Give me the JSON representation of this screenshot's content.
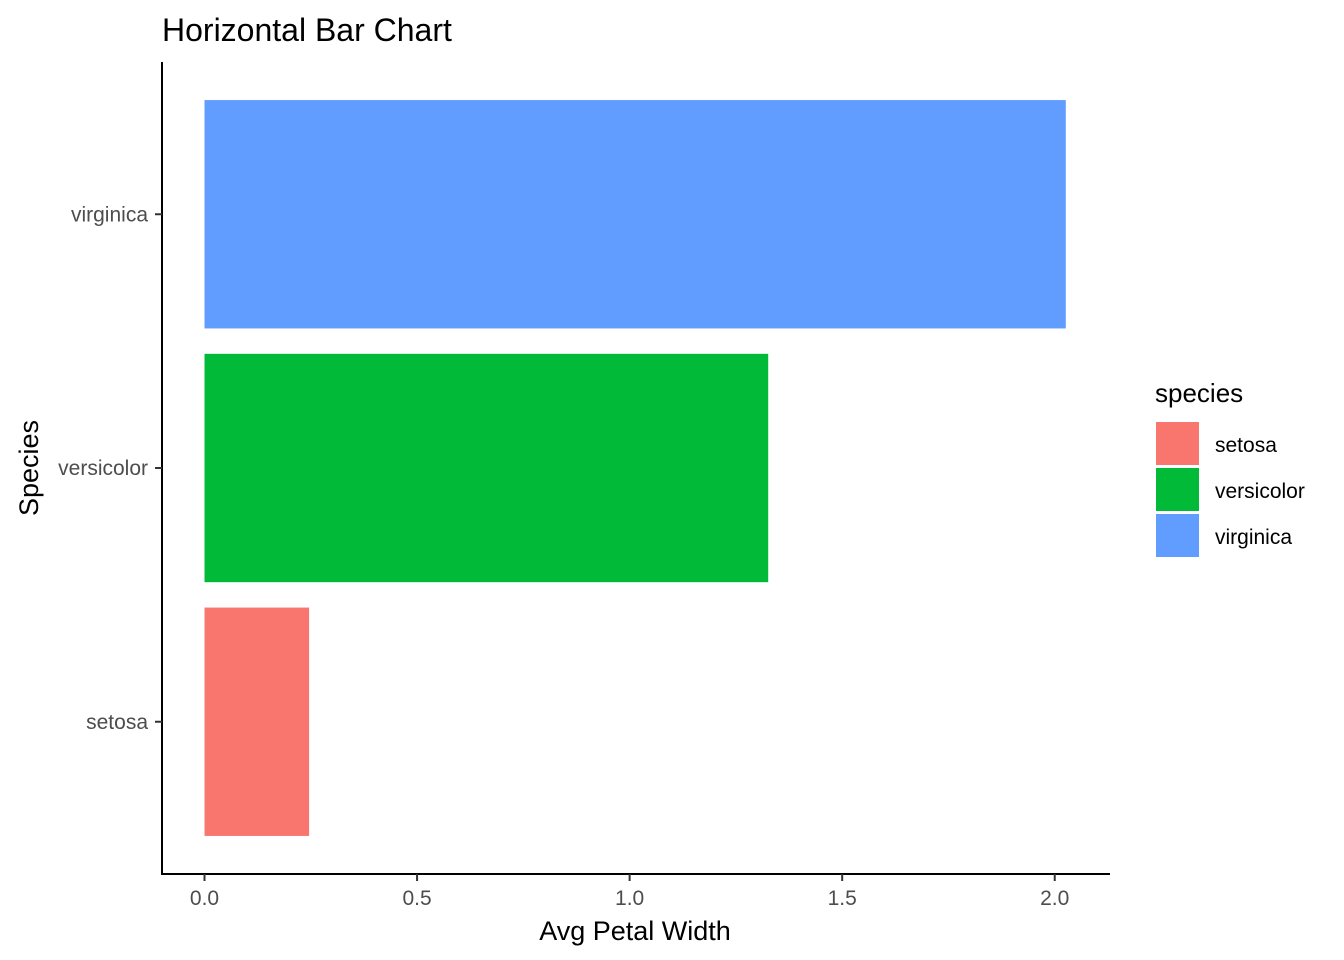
{
  "chart_data": {
    "type": "bar",
    "orientation": "horizontal",
    "title": "Horizontal Bar Chart",
    "xlabel": "Avg Petal Width",
    "ylabel": "Species",
    "categories": [
      "setosa",
      "versicolor",
      "virginica"
    ],
    "values": [
      0.246,
      1.326,
      2.026
    ],
    "colors": [
      "#F8766D",
      "#00BA38",
      "#619CFF"
    ],
    "xlim": [
      -0.1,
      2.13
    ],
    "x_ticks": [
      0.0,
      0.5,
      1.0,
      1.5,
      2.0
    ],
    "x_tick_labels": [
      "0.0",
      "0.5",
      "1.0",
      "1.5",
      "2.0"
    ],
    "grid": false,
    "legend": {
      "title": "species",
      "placement": "right",
      "entries": [
        {
          "label": "setosa",
          "color": "#F8766D"
        },
        {
          "label": "versicolor",
          "color": "#00BA38"
        },
        {
          "label": "virginica",
          "color": "#619CFF"
        }
      ]
    }
  }
}
